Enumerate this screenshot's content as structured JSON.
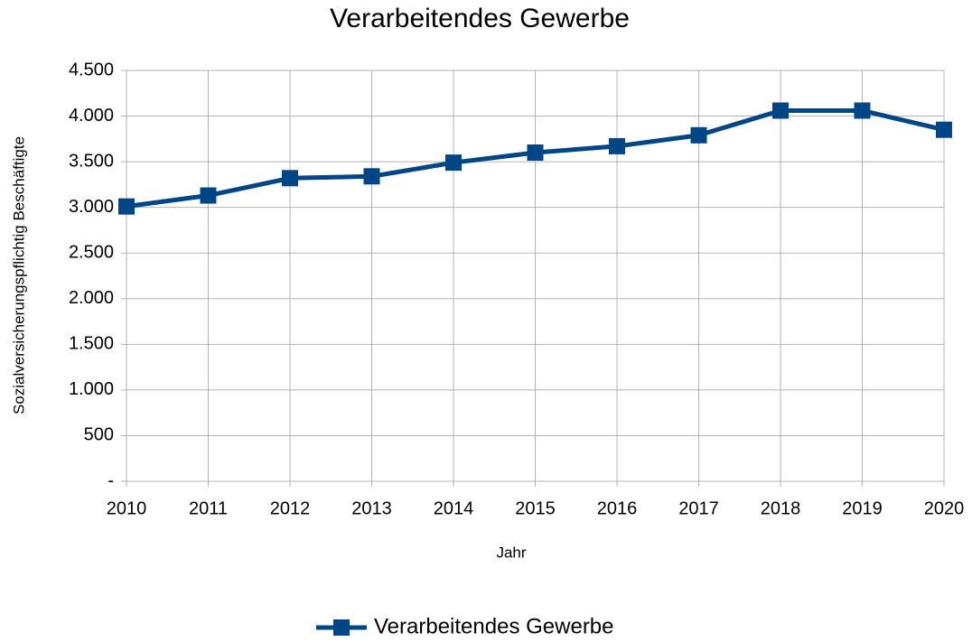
{
  "chart_data": {
    "type": "line",
    "title": "Verarbeitendes Gewerbe",
    "x_label": "Jahr",
    "y_label": "Sozialversicherungspflichtig Beschäftigte",
    "categories": [
      "2010",
      "2011",
      "2012",
      "2013",
      "2014",
      "2015",
      "2016",
      "2017",
      "2018",
      "2019",
      "2020"
    ],
    "series": [
      {
        "name": "Verarbeitendes Gewerbe",
        "color": "#004586",
        "values": [
          3010,
          3130,
          3320,
          3340,
          3490,
          3600,
          3670,
          3790,
          4060,
          4060,
          3850
        ]
      }
    ],
    "ylim": [
      0,
      4500
    ],
    "yticks": [
      {
        "value": 0,
        "label": "-"
      },
      500,
      {
        "value": 1000,
        "label": "1.000"
      },
      {
        "value": 1500,
        "label": "1.500"
      },
      {
        "value": 2000,
        "label": "2.000"
      },
      {
        "value": 2500,
        "label": "2.500"
      },
      {
        "value": 3000,
        "label": "3.000"
      },
      {
        "value": 3500,
        "label": "3.500"
      },
      {
        "value": 4000,
        "label": "4.000"
      },
      {
        "value": 4500,
        "label": "4.500"
      }
    ],
    "grid": true,
    "legend": "bottom"
  }
}
